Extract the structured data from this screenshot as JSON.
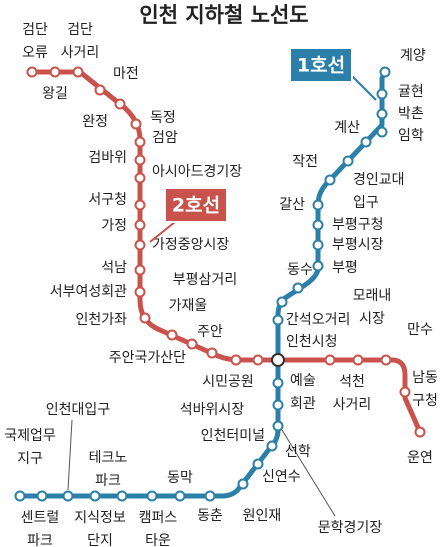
{
  "title": "인천 지하철 노선도",
  "lines": [
    {
      "name": "1호선",
      "color": "#2b7fa8",
      "stations": [
        {
          "name": [
            "계양"
          ]
        },
        {
          "name": [
            "귤현"
          ]
        },
        {
          "name": [
            "박촌"
          ]
        },
        {
          "name": [
            "임학"
          ]
        },
        {
          "name": [
            "계산"
          ]
        },
        {
          "name": [
            "경인교대",
            "입구"
          ]
        },
        {
          "name": [
            "작전"
          ]
        },
        {
          "name": [
            "갈산"
          ]
        },
        {
          "name": [
            "부평구청"
          ]
        },
        {
          "name": [
            "부평시장"
          ]
        },
        {
          "name": [
            "부평"
          ]
        },
        {
          "name": [
            "동수"
          ]
        },
        {
          "name": [
            "부평삼거리"
          ]
        },
        {
          "name": [
            "간석오거리"
          ]
        },
        {
          "name": [
            "인천시청"
          ]
        },
        {
          "name": [
            "예술",
            "회관"
          ]
        },
        {
          "name": [
            "인천터미널"
          ]
        },
        {
          "name": [
            "문학경기장"
          ]
        },
        {
          "name": [
            "선학"
          ]
        },
        {
          "name": [
            "신연수"
          ]
        },
        {
          "name": [
            "원인재"
          ]
        },
        {
          "name": [
            "동춘"
          ]
        },
        {
          "name": [
            "동막"
          ]
        },
        {
          "name": [
            "캠퍼스",
            "타운"
          ]
        },
        {
          "name": [
            "테크노",
            "파크"
          ]
        },
        {
          "name": [
            "지식정보",
            "단지"
          ]
        },
        {
          "name": [
            "인천대입구"
          ]
        },
        {
          "name": [
            "센트럴",
            "파크"
          ]
        },
        {
          "name": [
            "국제업무",
            "지구"
          ]
        }
      ]
    },
    {
      "name": "2호선",
      "color": "#c9524c",
      "stations": [
        {
          "name": [
            "검단",
            "오류"
          ]
        },
        {
          "name": [
            "왕길"
          ]
        },
        {
          "name": [
            "검단",
            "사거리"
          ]
        },
        {
          "name": [
            "마전"
          ]
        },
        {
          "name": [
            "완정"
          ]
        },
        {
          "name": [
            "독정"
          ]
        },
        {
          "name": [
            "검암"
          ]
        },
        {
          "name": [
            "검바위"
          ]
        },
        {
          "name": [
            "아시아드경기장"
          ]
        },
        {
          "name": [
            "서구청"
          ]
        },
        {
          "name": [
            "가정"
          ]
        },
        {
          "name": [
            "가정중앙시장"
          ]
        },
        {
          "name": [
            "석남"
          ]
        },
        {
          "name": [
            "서부여성회관"
          ]
        },
        {
          "name": [
            "인천가좌"
          ]
        },
        {
          "name": [
            "가재울"
          ]
        },
        {
          "name": [
            "주안국가산단"
          ]
        },
        {
          "name": [
            "주안"
          ]
        },
        {
          "name": [
            "시민공원"
          ]
        },
        {
          "name": [
            "석바위시장"
          ]
        },
        {
          "name": [
            "석천",
            "사거리"
          ]
        },
        {
          "name": [
            "모래내",
            "시장"
          ]
        },
        {
          "name": [
            "만수"
          ]
        },
        {
          "name": [
            "남동",
            "구청"
          ]
        },
        {
          "name": [
            "운연"
          ]
        }
      ]
    }
  ]
}
